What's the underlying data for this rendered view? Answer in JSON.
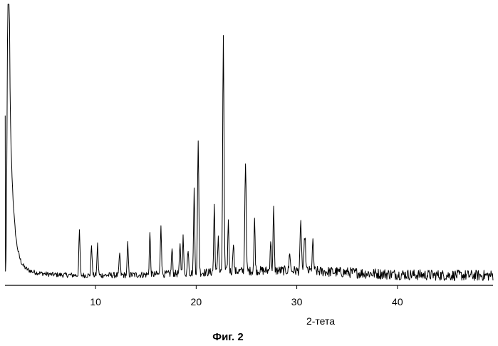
{
  "caption": "Фиг. 2",
  "chart_data": {
    "type": "line",
    "title": "",
    "xlabel": "2-тета",
    "ylabel": "",
    "xlim": [
      1,
      49.5
    ],
    "ylim": [
      0,
      100
    ],
    "xticks": [
      10,
      20,
      30,
      40
    ],
    "grid": false,
    "legend": "none",
    "line_color": "#000000",
    "baseline_level": 2.5,
    "peaks": [
      {
        "x": 1.3,
        "y": 100,
        "w": 0.12
      },
      {
        "x": 8.4,
        "y": 16,
        "w": 0.08
      },
      {
        "x": 9.6,
        "y": 11,
        "w": 0.08
      },
      {
        "x": 10.2,
        "y": 11,
        "w": 0.08
      },
      {
        "x": 12.4,
        "y": 8,
        "w": 0.08
      },
      {
        "x": 13.2,
        "y": 11,
        "w": 0.08
      },
      {
        "x": 15.4,
        "y": 15,
        "w": 0.08
      },
      {
        "x": 16.5,
        "y": 18,
        "w": 0.08
      },
      {
        "x": 17.6,
        "y": 9,
        "w": 0.08
      },
      {
        "x": 18.4,
        "y": 10,
        "w": 0.08
      },
      {
        "x": 18.7,
        "y": 13,
        "w": 0.08
      },
      {
        "x": 19.2,
        "y": 9,
        "w": 0.08
      },
      {
        "x": 19.8,
        "y": 30,
        "w": 0.08
      },
      {
        "x": 20.2,
        "y": 47,
        "w": 0.09
      },
      {
        "x": 21.8,
        "y": 24,
        "w": 0.08
      },
      {
        "x": 22.2,
        "y": 13,
        "w": 0.08
      },
      {
        "x": 22.7,
        "y": 85,
        "w": 0.09
      },
      {
        "x": 23.2,
        "y": 18,
        "w": 0.08
      },
      {
        "x": 23.7,
        "y": 11,
        "w": 0.08
      },
      {
        "x": 24.9,
        "y": 40,
        "w": 0.09
      },
      {
        "x": 25.8,
        "y": 18,
        "w": 0.08
      },
      {
        "x": 27.4,
        "y": 11,
        "w": 0.08
      },
      {
        "x": 27.7,
        "y": 22,
        "w": 0.08
      },
      {
        "x": 29.3,
        "y": 7,
        "w": 0.08
      },
      {
        "x": 30.4,
        "y": 17,
        "w": 0.1
      },
      {
        "x": 30.8,
        "y": 13,
        "w": 0.1
      },
      {
        "x": 31.6,
        "y": 10,
        "w": 0.1
      }
    ],
    "amorphous_hump": {
      "center": 28,
      "width": 10,
      "height": 1.8
    },
    "noise_amplitude": 1.4
  }
}
